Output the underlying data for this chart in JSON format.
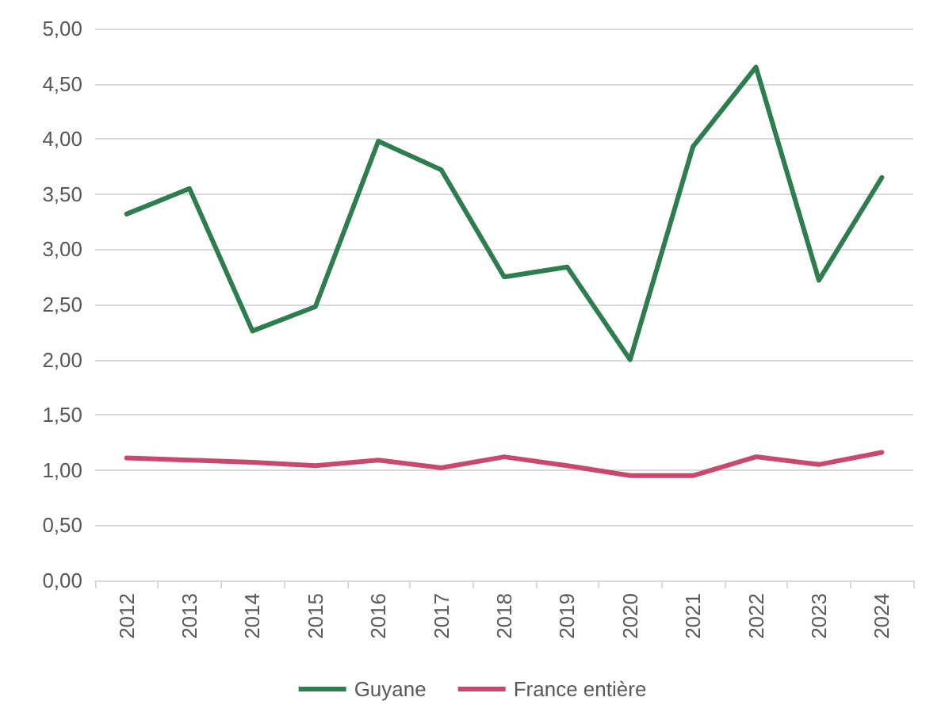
{
  "chart_data": {
    "type": "line",
    "categories": [
      "2012",
      "2013",
      "2014",
      "2015",
      "2016",
      "2017",
      "2018",
      "2019",
      "2020",
      "2021",
      "2022",
      "2023",
      "2024"
    ],
    "series": [
      {
        "name": "Guyane",
        "color": "#2e7d4f",
        "values": [
          3.32,
          3.55,
          2.26,
          2.48,
          3.98,
          3.72,
          2.75,
          2.84,
          2.0,
          3.93,
          4.65,
          2.72,
          3.65
        ]
      },
      {
        "name": "France entière",
        "color": "#c8486e",
        "values": [
          1.11,
          1.09,
          1.07,
          1.04,
          1.09,
          1.02,
          1.12,
          1.04,
          0.95,
          0.95,
          1.12,
          1.05,
          1.16
        ]
      }
    ],
    "ylim": [
      0,
      5
    ],
    "yticks": [
      {
        "value": 0,
        "label": "0,00"
      },
      {
        "value": 0.5,
        "label": "0,50"
      },
      {
        "value": 1,
        "label": "1,00"
      },
      {
        "value": 1.5,
        "label": "1,50"
      },
      {
        "value": 2,
        "label": "2,00"
      },
      {
        "value": 2.5,
        "label": "2,50"
      },
      {
        "value": 3,
        "label": "3,00"
      },
      {
        "value": 3.5,
        "label": "3,50"
      },
      {
        "value": 4,
        "label": "4,00"
      },
      {
        "value": 4.5,
        "label": "4,50"
      },
      {
        "value": 5,
        "label": "5,00"
      }
    ],
    "grid": "y",
    "legend": "bottom",
    "marker": "none",
    "line_style": "solid"
  }
}
